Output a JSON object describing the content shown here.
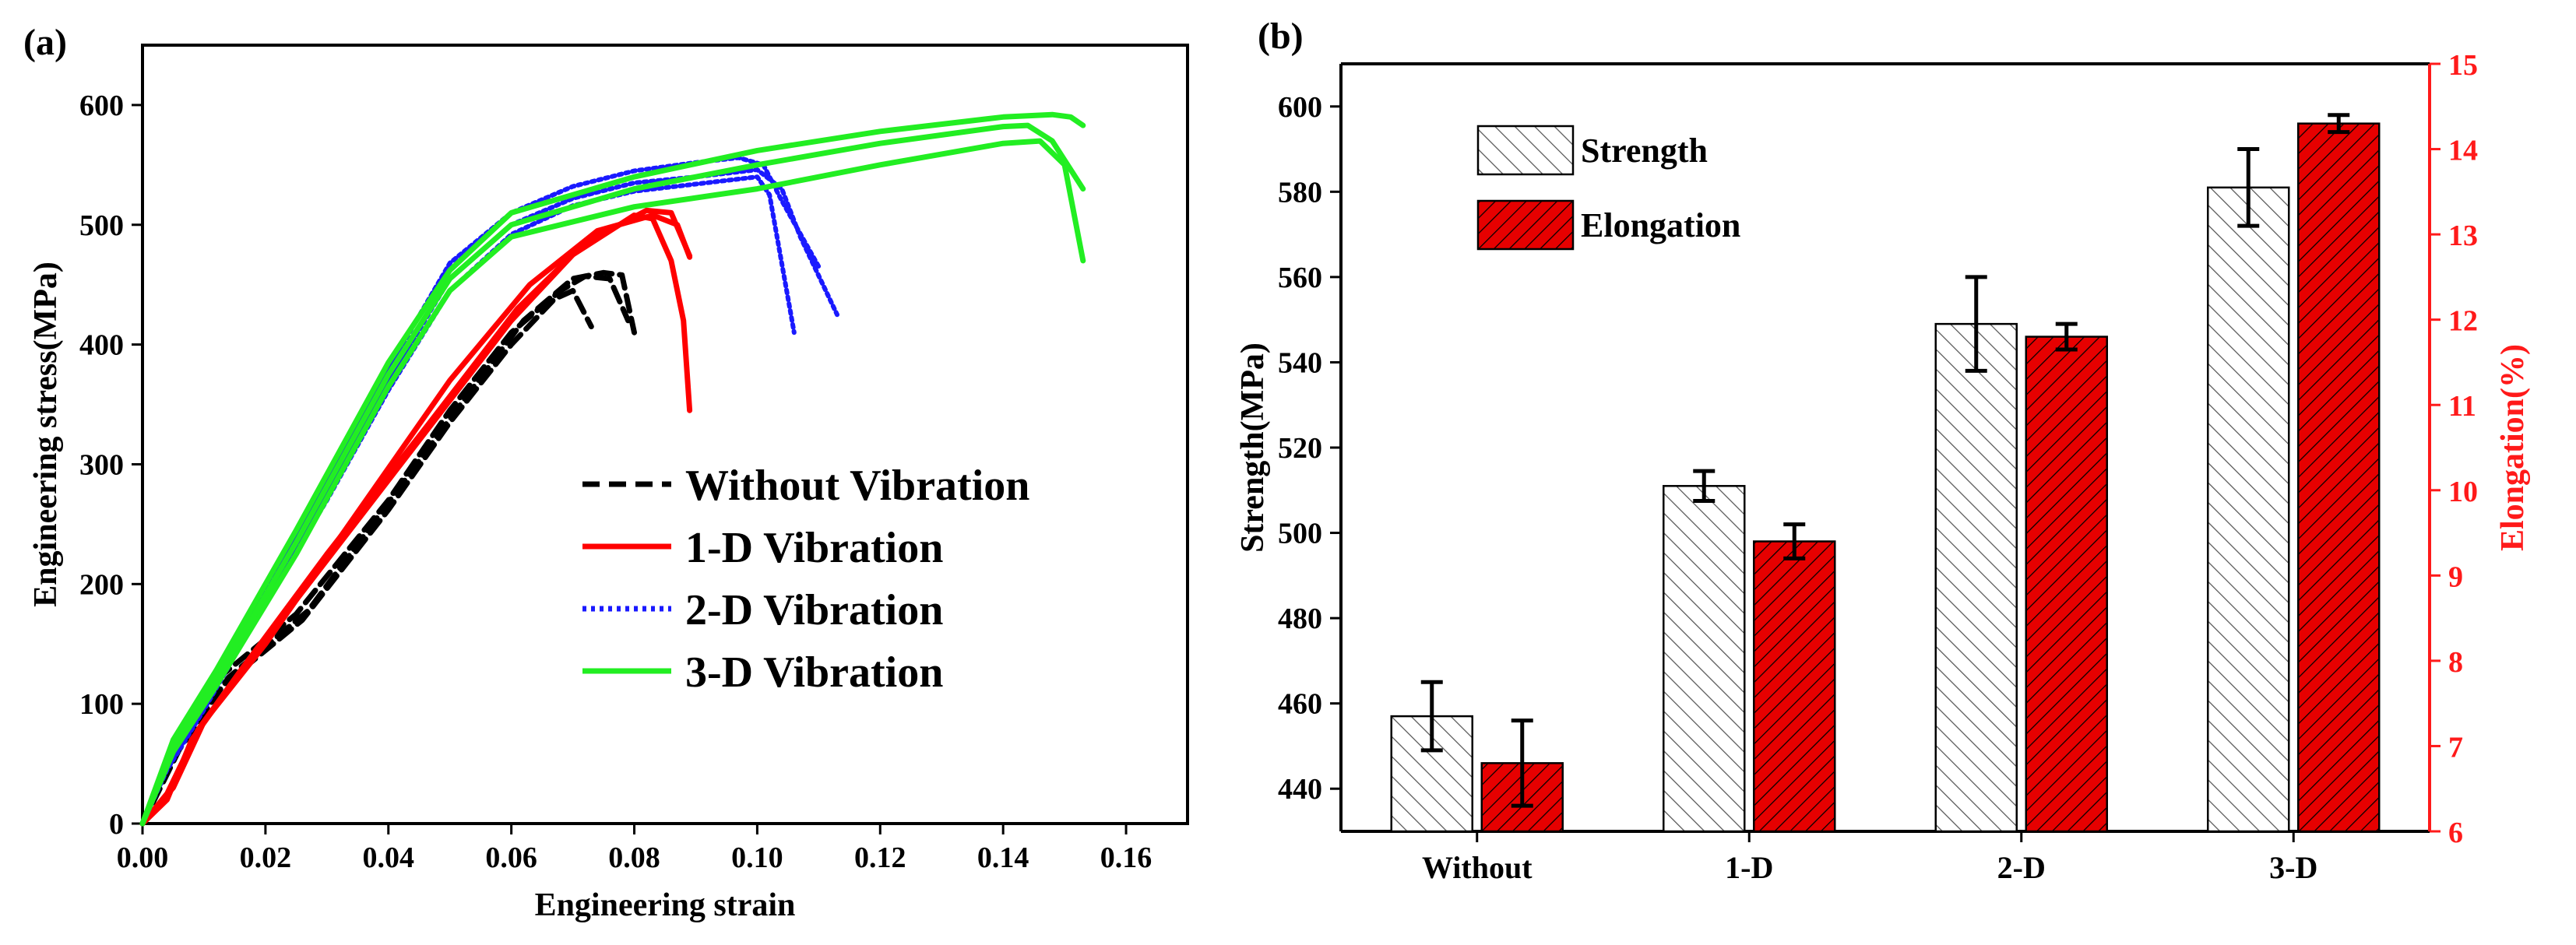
{
  "panel_a_label": "(a)",
  "panel_b_label": "(b)",
  "chart_data": [
    {
      "type": "line",
      "panel": "(a)",
      "xlabel": "Engineering  strain",
      "ylabel": "Engineering stress(MPa)",
      "xlim": [
        0,
        0.17
      ],
      "ylim": [
        0,
        650
      ],
      "xticks": [
        "0.00",
        "0.02",
        "0.04",
        "0.06",
        "0.08",
        "0.10",
        "0.12",
        "0.14",
        "0.16"
      ],
      "yticks": [
        "0",
        "100",
        "200",
        "300",
        "400",
        "500",
        "600"
      ],
      "legend": [
        "Without Vibration",
        "1-D Vibration",
        "2-D Vibration",
        "3-D Vibration"
      ],
      "series": [
        {
          "name": "Without Vibration",
          "color": "#000000",
          "style": "dashed",
          "curves": [
            [
              [
                0,
                0
              ],
              [
                0.005,
                60
              ],
              [
                0.012,
                120
              ],
              [
                0.025,
                175
              ],
              [
                0.04,
                270
              ],
              [
                0.05,
                345
              ],
              [
                0.06,
                410
              ],
              [
                0.068,
                445
              ],
              [
                0.072,
                457
              ],
              [
                0.076,
                455
              ],
              [
                0.079,
                420
              ]
            ],
            [
              [
                0,
                0
              ],
              [
                0.005,
                55
              ],
              [
                0.013,
                115
              ],
              [
                0.026,
                170
              ],
              [
                0.04,
                262
              ],
              [
                0.05,
                335
              ],
              [
                0.06,
                400
              ],
              [
                0.067,
                438
              ],
              [
                0.07,
                445
              ],
              [
                0.073,
                415
              ]
            ],
            [
              [
                0,
                0
              ],
              [
                0.006,
                62
              ],
              [
                0.014,
                122
              ],
              [
                0.027,
                178
              ],
              [
                0.041,
                275
              ],
              [
                0.052,
                352
              ],
              [
                0.062,
                420
              ],
              [
                0.07,
                455
              ],
              [
                0.075,
                460
              ],
              [
                0.078,
                458
              ],
              [
                0.08,
                410
              ]
            ]
          ]
        },
        {
          "name": "1-D Vibration",
          "color": "#ff0000",
          "style": "solid",
          "curves": [
            [
              [
                0,
                0
              ],
              [
                0.004,
                20
              ],
              [
                0.008,
                70
              ],
              [
                0.015,
                120
              ],
              [
                0.03,
                220
              ],
              [
                0.045,
                320
              ],
              [
                0.06,
                420
              ],
              [
                0.07,
                475
              ],
              [
                0.08,
                508
              ],
              [
                0.083,
                505
              ],
              [
                0.086,
                470
              ],
              [
                0.088,
                420
              ],
              [
                0.089,
                345
              ]
            ],
            [
              [
                0,
                0
              ],
              [
                0.004,
                25
              ],
              [
                0.009,
                78
              ],
              [
                0.016,
                128
              ],
              [
                0.03,
                225
              ],
              [
                0.046,
                330
              ],
              [
                0.061,
                430
              ],
              [
                0.072,
                485
              ],
              [
                0.082,
                512
              ],
              [
                0.086,
                510
              ],
              [
                0.089,
                474
              ]
            ],
            [
              [
                0,
                0
              ],
              [
                0.005,
                30
              ],
              [
                0.01,
                85
              ],
              [
                0.02,
                150
              ],
              [
                0.035,
                260
              ],
              [
                0.05,
                370
              ],
              [
                0.063,
                450
              ],
              [
                0.074,
                495
              ],
              [
                0.083,
                508
              ],
              [
                0.087,
                500
              ],
              [
                0.089,
                473
              ]
            ]
          ]
        },
        {
          "name": "2-D Vibration",
          "color": "#1a1aff",
          "style": "dotted",
          "curves": [
            [
              [
                0,
                0
              ],
              [
                0.004,
                50
              ],
              [
                0.01,
                100
              ],
              [
                0.02,
                190
              ],
              [
                0.03,
                275
              ],
              [
                0.04,
                370
              ],
              [
                0.05,
                455
              ],
              [
                0.06,
                500
              ],
              [
                0.07,
                522
              ],
              [
                0.08,
                535
              ],
              [
                0.09,
                540
              ],
              [
                0.1,
                546
              ],
              [
                0.104,
                530
              ],
              [
                0.107,
                490
              ],
              [
                0.113,
                425
              ]
            ],
            [
              [
                0,
                0
              ],
              [
                0.004,
                45
              ],
              [
                0.01,
                95
              ],
              [
                0.02,
                185
              ],
              [
                0.03,
                270
              ],
              [
                0.04,
                362
              ],
              [
                0.05,
                445
              ],
              [
                0.06,
                492
              ],
              [
                0.07,
                516
              ],
              [
                0.08,
                528
              ],
              [
                0.09,
                534
              ],
              [
                0.1,
                540
              ],
              [
                0.102,
                525
              ],
              [
                0.106,
                410
              ]
            ],
            [
              [
                0,
                0
              ],
              [
                0.004,
                55
              ],
              [
                0.01,
                108
              ],
              [
                0.02,
                198
              ],
              [
                0.03,
                285
              ],
              [
                0.04,
                380
              ],
              [
                0.05,
                468
              ],
              [
                0.06,
                510
              ],
              [
                0.07,
                532
              ],
              [
                0.08,
                545
              ],
              [
                0.09,
                552
              ],
              [
                0.097,
                556
              ],
              [
                0.101,
                550
              ],
              [
                0.104,
                520
              ],
              [
                0.11,
                465
              ]
            ]
          ]
        },
        {
          "name": "3-D Vibration",
          "color": "#22ee22",
          "style": "solid",
          "curves": [
            [
              [
                0,
                0
              ],
              [
                0.005,
                60
              ],
              [
                0.012,
                115
              ],
              [
                0.025,
                225
              ],
              [
                0.04,
                365
              ],
              [
                0.05,
                445
              ],
              [
                0.06,
                490
              ],
              [
                0.08,
                515
              ],
              [
                0.1,
                530
              ],
              [
                0.12,
                550
              ],
              [
                0.14,
                568
              ],
              [
                0.146,
                570
              ],
              [
                0.15,
                550
              ],
              [
                0.153,
                470
              ]
            ],
            [
              [
                0,
                0
              ],
              [
                0.005,
                65
              ],
              [
                0.012,
                120
              ],
              [
                0.025,
                235
              ],
              [
                0.04,
                375
              ],
              [
                0.05,
                455
              ],
              [
                0.06,
                500
              ],
              [
                0.08,
                530
              ],
              [
                0.1,
                550
              ],
              [
                0.12,
                568
              ],
              [
                0.14,
                582
              ],
              [
                0.144,
                583
              ],
              [
                0.148,
                570
              ],
              [
                0.153,
                530
              ]
            ],
            [
              [
                0,
                0
              ],
              [
                0.005,
                70
              ],
              [
                0.012,
                128
              ],
              [
                0.025,
                245
              ],
              [
                0.04,
                385
              ],
              [
                0.05,
                462
              ],
              [
                0.06,
                510
              ],
              [
                0.08,
                540
              ],
              [
                0.1,
                562
              ],
              [
                0.12,
                578
              ],
              [
                0.14,
                590
              ],
              [
                0.148,
                592
              ],
              [
                0.151,
                590
              ],
              [
                0.153,
                583
              ]
            ]
          ]
        }
      ]
    },
    {
      "type": "bar",
      "panel": "(b)",
      "categories": [
        "Without",
        "1-D",
        "2-D",
        "3-D"
      ],
      "ylabel": "Strength(MPa)",
      "y2label": "Elongation(%)",
      "ylim": [
        430,
        610
      ],
      "y2lim": [
        6,
        15
      ],
      "yticks": [
        "440",
        "460",
        "480",
        "500",
        "520",
        "540",
        "560",
        "580",
        "600"
      ],
      "y2ticks": [
        "6",
        "7",
        "8",
        "9",
        "10",
        "11",
        "12",
        "13",
        "14",
        "15"
      ],
      "legend": [
        "Strength",
        "Elongation"
      ],
      "series": [
        {
          "name": "Strength",
          "axis": "left",
          "color": "#ffffff",
          "values": [
            457,
            511,
            549,
            581
          ],
          "errors": [
            8,
            3.5,
            11,
            9
          ]
        },
        {
          "name": "Elongation",
          "axis": "right",
          "color": "#e60000",
          "values": [
            6.8,
            9.4,
            11.8,
            14.3
          ],
          "errors": [
            0.5,
            0.2,
            0.15,
            0.1
          ]
        }
      ]
    }
  ]
}
